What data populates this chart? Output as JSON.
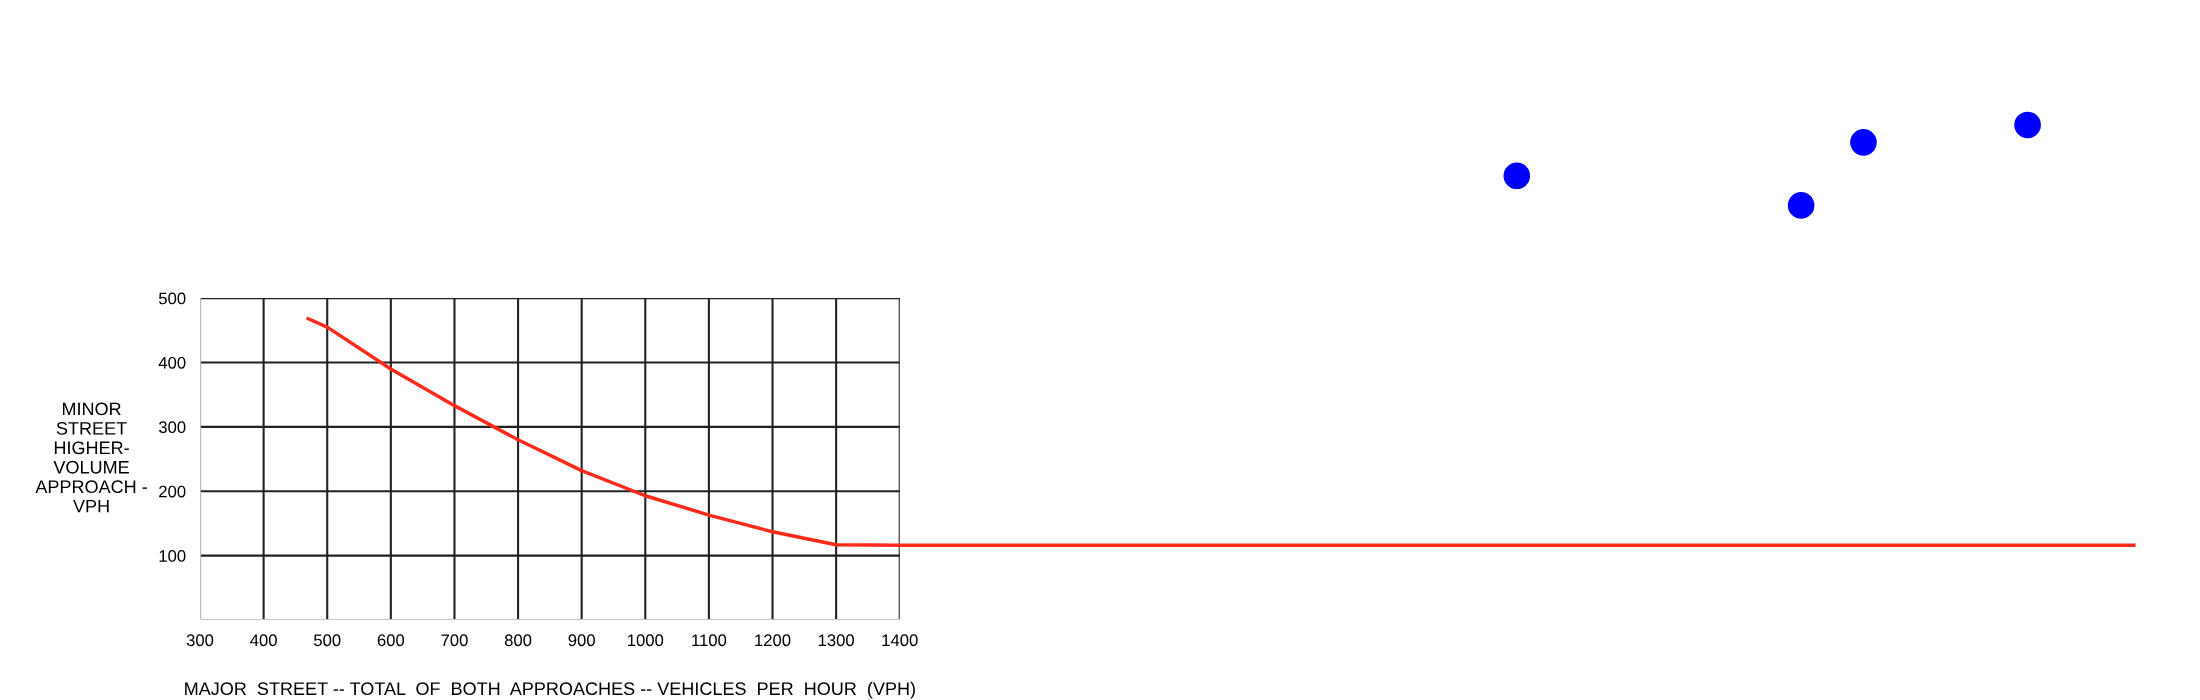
{
  "chart_data": {
    "type": "line",
    "xlabel": "MAJOR  STREET -- TOTAL  OF  BOTH  APPROACHES -- VEHICLES  PER  HOUR  (VPH)",
    "ylabel": "MINOR\nSTREET\nHIGHER-\nVOLUME\nAPPROACH -\nVPH",
    "xlim": [
      300,
      3400
    ],
    "xticks": [
      300,
      400,
      500,
      600,
      700,
      800,
      900,
      1000,
      1100,
      1200,
      1300,
      1400
    ],
    "ylim": [
      0,
      800
    ],
    "yticks": [
      {
        "value": 0,
        "label": null
      },
      100,
      200,
      300,
      400,
      500
    ],
    "grid": true,
    "series": [
      {
        "color": "#ff2a1a",
        "marker": "none",
        "line_style": "solid",
        "x": [
          470,
          500,
          600,
          700,
          800,
          900,
          1000,
          1100,
          1200,
          1300,
          1400,
          3340
        ],
        "values": [
          468,
          455,
          390,
          333,
          280,
          232,
          193,
          163,
          137,
          117,
          116,
          116
        ]
      },
      {
        "type": "scatter",
        "color": "#0000ff",
        "marker": "circle",
        "x": [
          2370,
          2817,
          2915,
          3173
        ],
        "values": [
          690,
          644,
          742,
          769
        ]
      }
    ]
  }
}
